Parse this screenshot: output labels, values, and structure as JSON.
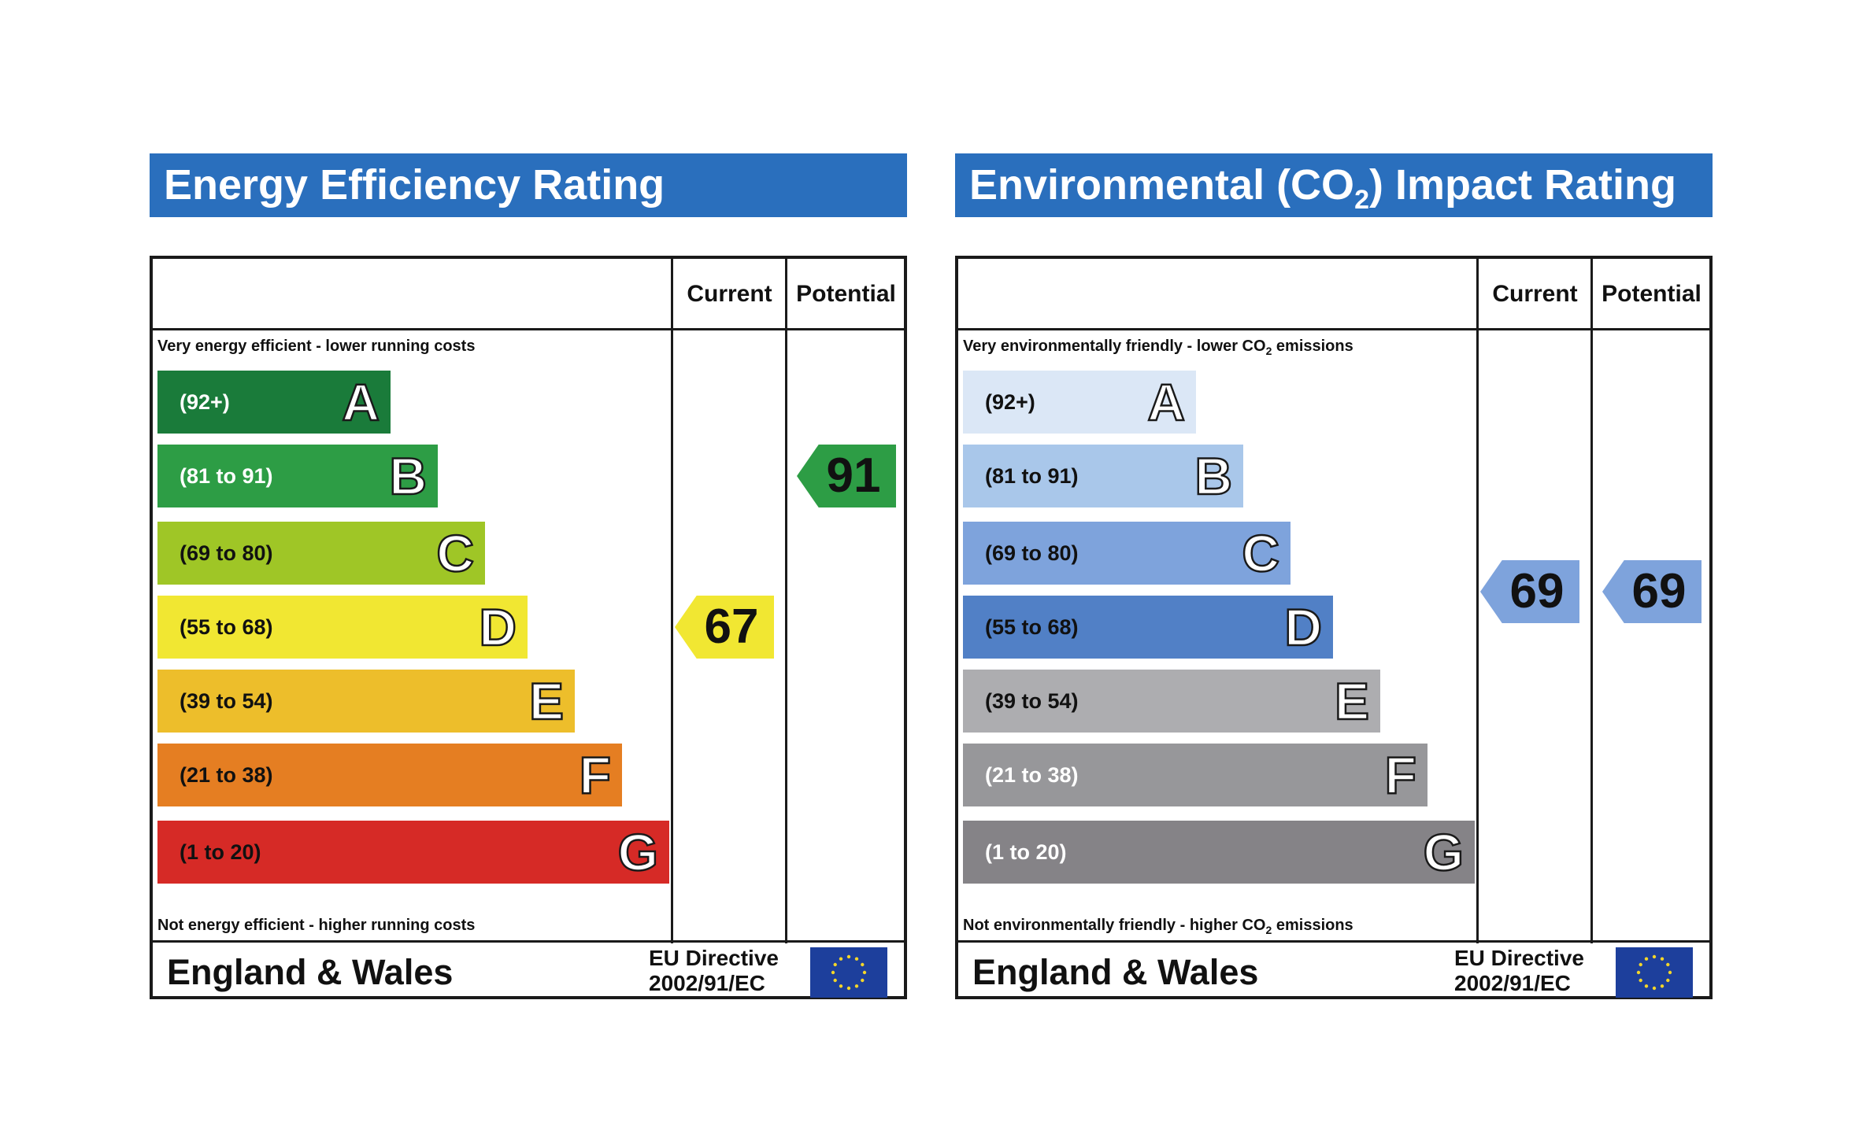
{
  "panels": [
    {
      "title": "Energy Efficiency Rating",
      "title_sub": "",
      "title_end": "",
      "title_color": "#2a6fbd",
      "col_current": "Current",
      "col_potential": "Potential",
      "top_note": "Very energy efficient - lower running costs",
      "top_note_sub": "",
      "top_note_end": "",
      "bottom_note": "Not energy efficient - higher running costs",
      "bottom_note_sub": "",
      "bottom_note_end": "",
      "bands": [
        {
          "range": "(92+)",
          "letter": "A",
          "color": "#1a7b3a",
          "text_color": "#ffffff"
        },
        {
          "range": "(81 to 91)",
          "letter": "B",
          "color": "#2d9d45",
          "text_color": "#ffffff"
        },
        {
          "range": "(69 to 80)",
          "letter": "C",
          "color": "#9fc626",
          "text_color": "#111111"
        },
        {
          "range": "(55 to 68)",
          "letter": "D",
          "color": "#f1e732",
          "text_color": "#111111"
        },
        {
          "range": "(39 to 54)",
          "letter": "E",
          "color": "#edbe2b",
          "text_color": "#111111"
        },
        {
          "range": "(21 to 38)",
          "letter": "F",
          "color": "#e57e22",
          "text_color": "#111111"
        },
        {
          "range": "(1 to 20)",
          "letter": "G",
          "color": "#d62a26",
          "text_color": "#111111"
        }
      ],
      "current": {
        "value": "67",
        "band": "D",
        "color": "#f1e732"
      },
      "potential": {
        "value": "91",
        "band": "B",
        "color": "#2d9d45"
      },
      "footer_region": "England & Wales",
      "footer_directive_line1": "EU Directive",
      "footer_directive_line2": "2002/91/EC",
      "flag_icon": "eu-flag-icon"
    },
    {
      "title": "Environmental (CO",
      "title_sub": "2",
      "title_end": ") Impact Rating",
      "title_color": "#2a6fbd",
      "col_current": "Current",
      "col_potential": "Potential",
      "top_note": "Very environmentally friendly - lower CO",
      "top_note_sub": "2",
      "top_note_end": " emissions",
      "bottom_note": "Not environmentally friendly - higher CO",
      "bottom_note_sub": "2",
      "bottom_note_end": " emissions",
      "bands": [
        {
          "range": "(92+)",
          "letter": "A",
          "color": "#dbe7f6",
          "text_color": "#111111"
        },
        {
          "range": "(81 to 91)",
          "letter": "B",
          "color": "#a9c7ea",
          "text_color": "#111111"
        },
        {
          "range": "(69 to 80)",
          "letter": "C",
          "color": "#7ea3dc",
          "text_color": "#111111"
        },
        {
          "range": "(55 to 68)",
          "letter": "D",
          "color": "#5180c6",
          "text_color": "#111111"
        },
        {
          "range": "(39 to 54)",
          "letter": "E",
          "color": "#adadb0",
          "text_color": "#111111"
        },
        {
          "range": "(21 to 38)",
          "letter": "F",
          "color": "#97979a",
          "text_color": "#ffffff"
        },
        {
          "range": "(1 to 20)",
          "letter": "G",
          "color": "#858387",
          "text_color": "#ffffff"
        }
      ],
      "current": {
        "value": "69",
        "band": "C/D",
        "color": "#7ea3dc"
      },
      "potential": {
        "value": "69",
        "band": "C/D",
        "color": "#7ea3dc"
      },
      "footer_region": "England & Wales",
      "footer_directive_line1": "EU Directive",
      "footer_directive_line2": "2002/91/EC",
      "flag_icon": "eu-flag-icon"
    }
  ],
  "chart_data": [
    {
      "type": "table",
      "title": "Energy Efficiency Rating",
      "columns": [
        "Current",
        "Potential"
      ],
      "bands": [
        "A (92+)",
        "B (81 to 91)",
        "C (69 to 80)",
        "D (55 to 68)",
        "E (39 to 54)",
        "F (21 to 38)",
        "G (1 to 20)"
      ],
      "current": 67,
      "potential": 91
    },
    {
      "type": "table",
      "title": "Environmental (CO2) Impact Rating",
      "columns": [
        "Current",
        "Potential"
      ],
      "bands": [
        "A (92+)",
        "B (81 to 91)",
        "C (69 to 80)",
        "D (55 to 68)",
        "E (39 to 54)",
        "F (21 to 38)",
        "G (1 to 20)"
      ],
      "current": 69,
      "potential": 69
    }
  ]
}
